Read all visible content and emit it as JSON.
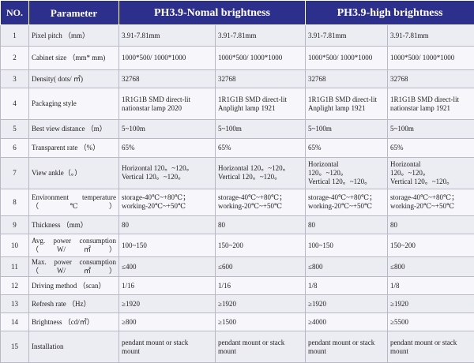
{
  "header": {
    "no": "NO.",
    "parameter": "Parameter",
    "group_normal": "PH3.9-Nomal brightness",
    "group_high": "PH3.9-high brightness"
  },
  "rows": [
    {
      "no": "1",
      "param": "Pixel pitch （mm）",
      "v1": "3.91-7.81mm",
      "v2": "3.91-7.81mm",
      "v3": "3.91-7.81mm",
      "v4": "3.91-7.81mm"
    },
    {
      "no": "2",
      "param": "Cabinet size （mm* mm)",
      "v1": "1000*500/ 1000*1000",
      "v2": "1000*500/ 1000*1000",
      "v3": "1000*500/ 1000*1000",
      "v4": "1000*500/ 1000*1000"
    },
    {
      "no": "3",
      "param": "Density( dots/ ㎡)",
      "v1": "32768",
      "v2": "32768",
      "v3": "32768",
      "v4": "32768"
    },
    {
      "no": "4",
      "param": "Packaging   style",
      "v1": "1R1G1B SMD direct-lit\nnationstar lamp 2020",
      "v2": "1R1G1B SMD direct-lit\nAnplight lamp 1921",
      "v3": "1R1G1B SMD direct-lit\nAnplight lamp 1921",
      "v4": "1R1G1B SMD direct-lit\nnationstar lamp 1921"
    },
    {
      "no": "5",
      "param": "Best view distance （m）",
      "v1": "5~100m",
      "v2": "5~100m",
      "v3": "5~100m",
      "v4": "5~100m"
    },
    {
      "no": "6",
      "param": "Transparent rate （%）",
      "v1": "65%",
      "v2": "65%",
      "v3": "65%",
      "v4": "65%"
    },
    {
      "no": "7",
      "param": "View ankle（。）",
      "v1": "Horizontal 120。~120。\nVertical 120。~120。",
      "v2": "Horizontal 120。~120。\nVertical 120。~120。",
      "v3": "Horizontal\n120。~120。\nVertical 120。~120。",
      "v4": "Horizontal\n120。~120。\nVertical 120。~120。"
    },
    {
      "no": "8",
      "param": "Environment   temperature （℃）",
      "v1": "storage-40℃~+80℃；\nworking-20℃~+50℃",
      "v2": "storage-40℃~+80℃；\nworking-20℃~+50℃",
      "v3": "storage-40℃~+80℃；\nworking-20℃~+50℃",
      "v4": "storage-40℃~+80℃；\nworking-20℃~+50℃"
    },
    {
      "no": "9",
      "param": "Thickness （mm）",
      "v1": "80",
      "v2": "80",
      "v3": "80",
      "v4": "80"
    },
    {
      "no": "10",
      "param": "Avg.  power consumption （W/㎡）",
      "v1": "100~150",
      "v2": "150~200",
      "v3": "100~150",
      "v4": "150~200"
    },
    {
      "no": "11",
      "param": "Max.  power consumption （W/㎡）",
      "v1": "≤400",
      "v2": "≤600",
      "v3": "≤800",
      "v4": "≤800"
    },
    {
      "no": "12",
      "param": "Driving method （scan）",
      "v1": "1/16",
      "v2": "1/16",
      "v3": "1/8",
      "v4": "1/8"
    },
    {
      "no": "13",
      "param": "Refresh rate （Hz）",
      "v1": "≥1920",
      "v2": "≥1920",
      "v3": "≥1920",
      "v4": "≥1920"
    },
    {
      "no": "14",
      "param": "Brightness （cd/㎡）",
      "v1": "≥800",
      "v2": "≥1500",
      "v3": "≥4000",
      "v4": "≥5500"
    },
    {
      "no": "15",
      "param": "Installation",
      "v1": "pendant mount or stack\nmount",
      "v2": "pendant mount or stack\nmount",
      "v3": "pendant mount or stack\nmount",
      "v4": "pendant mount or stack\nmount"
    }
  ]
}
